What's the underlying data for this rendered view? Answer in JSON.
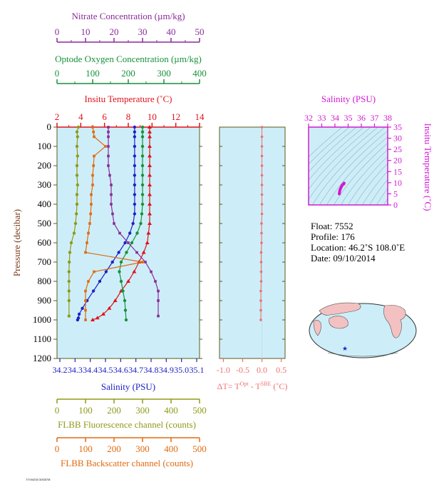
{
  "colors": {
    "nitrate": "#8b2a9b",
    "oxygen": "#17913a",
    "temperature": "#e0121b",
    "salinity": "#1f22c4",
    "fluorescence": "#8f9a18",
    "backscatter": "#e06a10",
    "delta_t": "#f07070",
    "ts_axis": "#d21ad2",
    "plot_bg": "#cdeef8",
    "frame": "#5b5b1a"
  },
  "axes": {
    "nitrate": {
      "label": "Nitrate Concentration (µm/kg)",
      "ticks": [
        "0",
        "10",
        "20",
        "30",
        "40",
        "50"
      ]
    },
    "oxygen": {
      "label": "Optode Oxygen Concentration (µm/kg)",
      "ticks": [
        "0",
        "100",
        "200",
        "300",
        "400"
      ]
    },
    "temperature": {
      "label": "Insitu Temperature (˚C)",
      "ticks": [
        "2",
        "4",
        "6",
        "8",
        "10",
        "12",
        "14"
      ]
    },
    "pressure": {
      "label": "Pressure (decibar)",
      "ticks": [
        "0",
        "100",
        "200",
        "300",
        "400",
        "500",
        "600",
        "700",
        "800",
        "900",
        "1000",
        "1100",
        "1200"
      ]
    },
    "salinity": {
      "label": "Salinity (PSU)",
      "ticks": [
        "34.2",
        "34.3",
        "34.4",
        "34.5",
        "34.6",
        "34.7",
        "34.8",
        "34.9",
        "35.0",
        "35.1"
      ]
    },
    "fluorescence": {
      "label": "FLBB Fluorescence channel (counts)",
      "ticks": [
        "0",
        "100",
        "200",
        "300",
        "400",
        "500"
      ]
    },
    "backscatter": {
      "label": "FLBB Backscatter channel (counts)",
      "ticks": [
        "0",
        "100",
        "200",
        "300",
        "400",
        "500"
      ]
    },
    "delta_t": {
      "label_prefix": "ΔT= T",
      "label_sup1": "Opt",
      "label_mid": " - T",
      "label_sup2": "SBE",
      "label_suffix": " (˚C)",
      "ticks": [
        "-1.0",
        "-0.5",
        "0.0",
        "0.5"
      ]
    },
    "ts_salinity": {
      "label": "Salinity (PSU)",
      "ticks": [
        "32",
        "33",
        "34",
        "35",
        "36",
        "37",
        "38"
      ]
    },
    "ts_temperature": {
      "label": "Insitu Temperature (˚C)",
      "ticks": [
        "0",
        "5",
        "10",
        "15",
        "20",
        "25",
        "30",
        "35"
      ]
    }
  },
  "info": {
    "float": "Float:  7552",
    "profile": "Profile:  176",
    "location": "Location:  46.2˚S  108.0˚E",
    "date": "Date:  09/10/2014"
  },
  "footer": "7/7/44233 3/3337/8",
  "chart_data": [
    {
      "type": "line",
      "y_axis": "pressure (decibar)",
      "ylim": [
        0,
        1200
      ],
      "y_inverted": true,
      "series": [
        {
          "name": "Insitu Temperature",
          "xlim": [
            2,
            14
          ],
          "x": [
            9.8,
            9.8,
            9.8,
            9.8,
            9.8,
            9.8,
            9.8,
            9.8,
            9.8,
            9.8,
            9.8,
            9.8,
            9.7,
            9.6,
            9.3,
            8.9,
            8.5,
            8.0,
            7.4,
            6.9,
            6.4,
            5.9,
            5.4,
            5.0
          ],
          "y": [
            0,
            25,
            50,
            100,
            150,
            200,
            250,
            300,
            350,
            400,
            450,
            500,
            550,
            600,
            650,
            700,
            750,
            800,
            850,
            900,
            940,
            970,
            990,
            1000
          ]
        },
        {
          "name": "Salinity",
          "xlim": [
            34.2,
            35.1
          ],
          "x": [
            34.69,
            34.69,
            34.69,
            34.69,
            34.69,
            34.69,
            34.69,
            34.69,
            34.69,
            34.69,
            34.69,
            34.68,
            34.66,
            34.63,
            34.59,
            34.55,
            34.51,
            34.47,
            34.43,
            34.39,
            34.36,
            34.34,
            34.335,
            34.33
          ],
          "y": [
            0,
            25,
            50,
            100,
            150,
            200,
            250,
            300,
            350,
            400,
            450,
            500,
            550,
            600,
            650,
            700,
            750,
            800,
            850,
            900,
            940,
            970,
            990,
            1000
          ]
        },
        {
          "name": "Optode Oxygen Concentration",
          "xlim": [
            0,
            400
          ],
          "x": [
            240,
            240,
            240,
            240,
            240,
            240,
            240,
            240,
            240,
            240,
            238,
            235,
            225,
            210,
            195,
            180,
            175,
            180,
            185,
            190,
            192,
            194
          ],
          "y": [
            0,
            25,
            50,
            100,
            150,
            200,
            250,
            300,
            350,
            400,
            450,
            500,
            550,
            600,
            650,
            700,
            750,
            800,
            850,
            900,
            950,
            1000
          ]
        },
        {
          "name": "Nitrate Concentration",
          "xlim": [
            0,
            50
          ],
          "x": [
            18,
            18,
            18,
            18,
            18,
            18,
            18.5,
            19,
            19,
            19,
            19.5,
            20,
            22,
            25,
            28,
            31,
            33,
            34.5,
            35.5,
            35.5,
            35.5
          ],
          "y": [
            0,
            25,
            50,
            100,
            150,
            200,
            250,
            300,
            350,
            400,
            450,
            500,
            550,
            600,
            650,
            700,
            750,
            800,
            850,
            900,
            980
          ]
        },
        {
          "name": "FLBB Fluorescence channel",
          "xlim": [
            0,
            500
          ],
          "x": [
            75,
            70,
            72,
            70,
            72,
            70,
            70,
            72,
            70,
            70,
            68,
            65,
            60,
            50,
            45,
            43,
            42,
            42,
            42,
            42,
            42
          ],
          "y": [
            0,
            25,
            50,
            100,
            150,
            200,
            250,
            300,
            350,
            400,
            450,
            500,
            550,
            600,
            650,
            700,
            750,
            800,
            850,
            900,
            980
          ]
        },
        {
          "name": "FLBB Backscatter channel",
          "xlim": [
            0,
            500
          ],
          "x": [
            125,
            128,
            130,
            170,
            130,
            128,
            125,
            125,
            120,
            120,
            118,
            115,
            110,
            105,
            100,
            300,
            130,
            110,
            100,
            100,
            100,
            100
          ],
          "y": [
            0,
            25,
            50,
            100,
            150,
            200,
            250,
            300,
            350,
            400,
            450,
            500,
            550,
            600,
            650,
            700,
            750,
            800,
            850,
            900,
            950,
            1000
          ]
        }
      ]
    },
    {
      "type": "scatter",
      "xlabel": "ΔT = TOpt - TSBE (˚C)",
      "xlim": [
        -1.1,
        0.6
      ],
      "ylim": [
        0,
        1200
      ],
      "x": [
        0.0,
        0.0,
        0.0,
        0.0,
        0.0,
        0.0,
        0.0,
        0.0,
        0.0,
        0.0,
        -0.01,
        -0.01,
        -0.01,
        -0.02,
        -0.02,
        -0.02,
        -0.02,
        -0.03,
        -0.03,
        -0.03,
        -0.03
      ],
      "y": [
        0,
        50,
        100,
        150,
        200,
        250,
        300,
        350,
        400,
        450,
        500,
        550,
        600,
        650,
        700,
        750,
        800,
        850,
        900,
        950,
        1000
      ]
    },
    {
      "type": "line",
      "title": "Salinity (PSU)",
      "xlabel": "Salinity (PSU)",
      "ylabel": "Insitu Temperature (˚C)",
      "xlim": [
        32,
        38
      ],
      "ylim": [
        0,
        35
      ],
      "x": [
        34.33,
        34.35,
        34.39,
        34.47,
        34.55,
        34.63,
        34.68,
        34.69
      ],
      "y": [
        5.0,
        5.9,
        6.9,
        8.0,
        8.9,
        9.3,
        9.6,
        9.8
      ]
    }
  ]
}
